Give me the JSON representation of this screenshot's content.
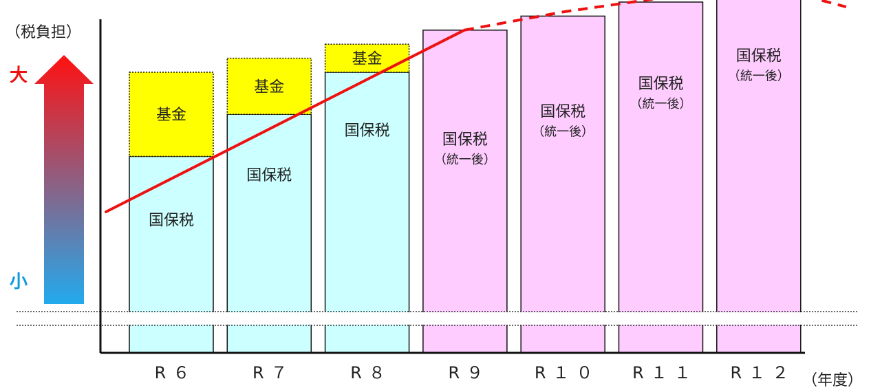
{
  "colors": {
    "kokuho": "#ccffff",
    "kikin": "#ffff00",
    "unified": "#ffccff",
    "trend": "#ee1111",
    "arrow_top": "#ff1111",
    "arrow_bottom": "#22aaee",
    "large_label": "#ee1111",
    "small_label": "#1199dd"
  },
  "chart_data": {
    "type": "bar",
    "stacked": true,
    "categories": [
      "R６",
      "R７",
      "R８",
      "R９",
      "R１０",
      "R１１",
      "R１２"
    ],
    "xlabel": "（年度）",
    "ylabel": "（税負担）",
    "y_scale_high": "大",
    "y_scale_low": "小",
    "axis_break": true,
    "grid": false,
    "series": [
      {
        "name": "国保税",
        "kind": "kokuho",
        "values": [
          72,
          90,
          108,
          null,
          null,
          null,
          null
        ]
      },
      {
        "name": "基金",
        "kind": "kikin",
        "values": [
          36,
          24,
          12,
          null,
          null,
          null,
          null
        ]
      },
      {
        "name": "国保税",
        "sublabel": "（統一後）",
        "kind": "unified",
        "values": [
          null,
          null,
          null,
          126,
          132,
          138,
          144
        ]
      }
    ],
    "trend_line": {
      "values": [
        72,
        90,
        108,
        126,
        132,
        138,
        144
      ],
      "solid_until": "R９",
      "dashed_after": "R９"
    },
    "ylim": [
      -12,
      155
    ]
  }
}
